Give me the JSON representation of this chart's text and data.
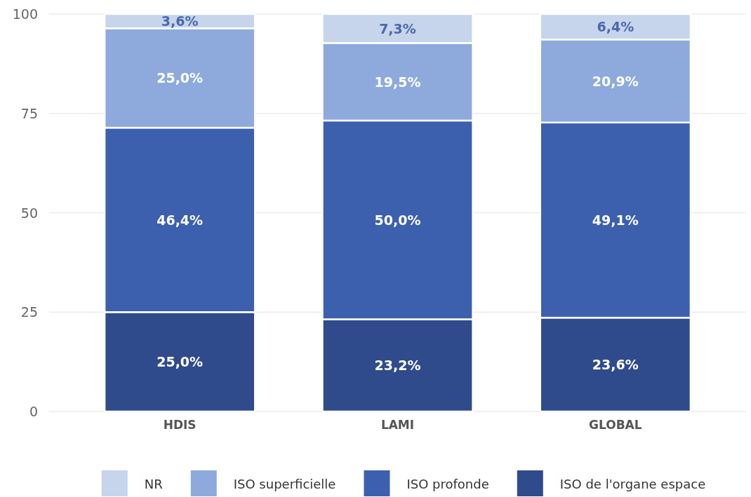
{
  "chart_data": {
    "type": "bar",
    "stacked": true,
    "categories": [
      "HDIS",
      "LAMI",
      "GLOBAL"
    ],
    "series": [
      {
        "name": "ISO de l'organe espace",
        "color": "#2f4b8c",
        "values": [
          25.0,
          23.2,
          23.6
        ],
        "value_labels": [
          "25,0%",
          "23,2%",
          "23,6%"
        ]
      },
      {
        "name": "ISO profonde",
        "color": "#3c5fae",
        "values": [
          46.4,
          50.0,
          49.1
        ],
        "value_labels": [
          "46,4%",
          "50,0%",
          "49,1%"
        ]
      },
      {
        "name": "ISO superficielle",
        "color": "#8eaadc",
        "values": [
          25.0,
          19.5,
          20.9
        ],
        "value_labels": [
          "25,0%",
          "19,5%",
          "20,9%"
        ]
      },
      {
        "name": "NR",
        "color": "#c6d4ec",
        "values": [
          3.6,
          7.3,
          6.4
        ],
        "value_labels": [
          "3,6%",
          "7,3%",
          "6,4%"
        ]
      }
    ],
    "ylim": [
      0,
      100
    ],
    "yticks": [
      0,
      25,
      50,
      75,
      100
    ],
    "grid": "y",
    "legend": "bottom"
  }
}
